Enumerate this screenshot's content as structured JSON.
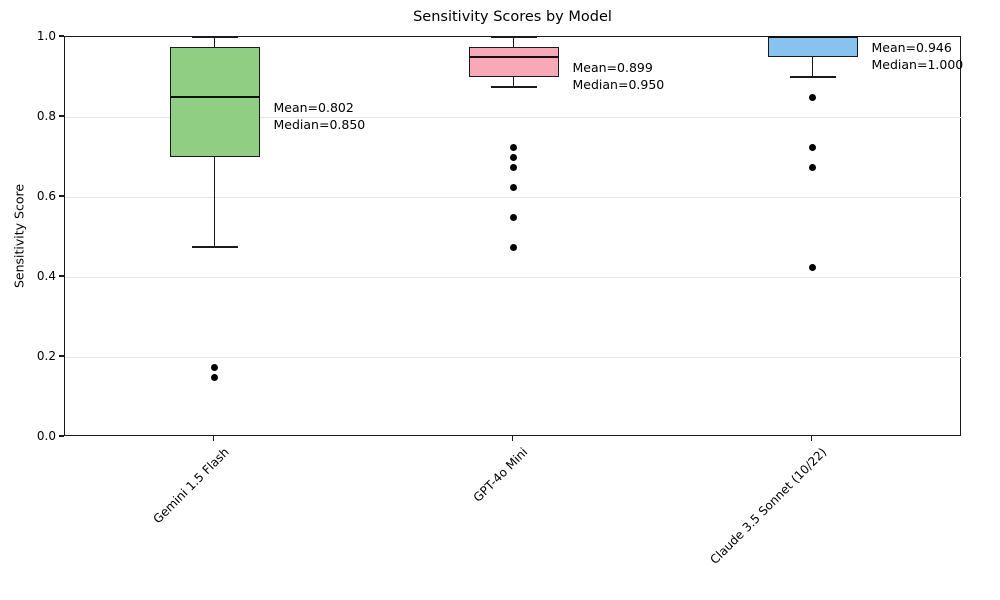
{
  "chart_data": {
    "type": "boxplot",
    "title": "Sensitivity Scores by Model",
    "xlabel": "",
    "ylabel": "Sensitivity Score",
    "ylim": [
      0.0,
      1.0
    ],
    "ytick_labels": [
      "0.0",
      "0.2",
      "0.4",
      "0.6",
      "0.8",
      "1.0"
    ],
    "grid": "horizontal-light",
    "legend": "none",
    "categories": [
      "Gemini 1.5 Flash",
      "GPT-4o Mini",
      "Claude 3.5 Sonnet (10/22)"
    ],
    "boxes": [
      {
        "category": "Gemini 1.5 Flash",
        "fill_color": "#90CE84",
        "whisker_low": 0.475,
        "q1": 0.7,
        "median": 0.85,
        "q3": 0.975,
        "whisker_high": 1.0,
        "outliers": [
          0.175,
          0.15
        ],
        "mean": 0.802,
        "annotation_lines": [
          "Mean=0.802",
          "Median=0.850"
        ]
      },
      {
        "category": "GPT-4o Mini",
        "fill_color": "#F9A8B8",
        "whisker_low": 0.875,
        "q1": 0.9,
        "median": 0.95,
        "q3": 0.975,
        "whisker_high": 1.0,
        "outliers": [
          0.725,
          0.7,
          0.675,
          0.625,
          0.55,
          0.475
        ],
        "mean": 0.899,
        "annotation_lines": [
          "Mean=0.899",
          "Median=0.950"
        ]
      },
      {
        "category": "Claude 3.5 Sonnet (10/22)",
        "fill_color": "#87C3EE",
        "whisker_low": 0.9,
        "q1": 0.95,
        "median": 1.0,
        "q3": 1.0,
        "whisker_high": 1.0,
        "outliers": [
          0.85,
          0.725,
          0.675,
          0.425
        ],
        "mean": 0.946,
        "annotation_lines": [
          "Mean=0.946",
          "Median=1.000"
        ]
      }
    ],
    "colors": {
      "edge": "#1a1a1a",
      "median": "#111111",
      "grid": "#e5e5e5",
      "outlier": "#000000",
      "text": "#000000"
    }
  }
}
